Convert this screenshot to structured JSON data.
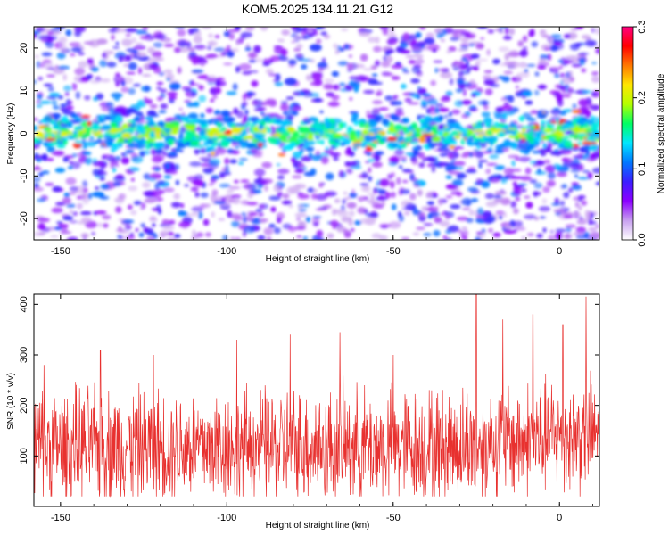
{
  "title": "KOM5.2025.134.11.21.G12",
  "chart_data": [
    {
      "type": "heatmap",
      "title": "KOM5.2025.134.11.21.G12",
      "xlabel": "Height of straight line (km)",
      "ylabel": "Frequency (Hz)",
      "xlim": [
        -158,
        12
      ],
      "ylim": [
        -25,
        25
      ],
      "x_ticks": [
        -150,
        -100,
        -50,
        0
      ],
      "x_tick_labels": [
        "-150",
        "-100",
        "-50",
        "0"
      ],
      "y_ticks": [
        -20,
        -10,
        0,
        10,
        20
      ],
      "y_tick_labels": [
        "-20",
        "-10",
        "0",
        "10",
        "20"
      ],
      "colorbar": {
        "label": "Normalized spectral amplitude",
        "range": [
          0.0,
          0.3
        ],
        "ticks": [
          0.0,
          0.1,
          0.2,
          0.3
        ],
        "tick_labels": [
          "0.0",
          "0.1",
          "0.2",
          "0.3"
        ],
        "colormap": [
          "#ffffff",
          "#c8a0f0",
          "#8c00ff",
          "#3c1eff",
          "#0078ff",
          "#00e6ff",
          "#00ff64",
          "#b4ff00",
          "#ffe600",
          "#ff7800",
          "#ff0000",
          "#ff0080"
        ]
      },
      "band": {
        "center_hz": 0,
        "half_width_hz": 4,
        "peak_amplitude": 0.28
      },
      "grid": false
    },
    {
      "type": "line",
      "xlabel": "Height of straight line (km)",
      "ylabel": "SNR (10 * v/v)",
      "xlim": [
        -158,
        12
      ],
      "ylim": [
        0,
        420
      ],
      "x_ticks": [
        -150,
        -100,
        -50,
        0
      ],
      "x_tick_labels": [
        "-150",
        "-100",
        "-50",
        "0"
      ],
      "y_ticks": [
        100,
        200,
        300,
        400
      ],
      "y_tick_labels": [
        "100",
        "200",
        "300",
        "400"
      ],
      "series": [
        {
          "color": "#e8312f",
          "baseline": 120,
          "typical_range": [
            20,
            260
          ],
          "peaks": [
            {
              "x": -155,
              "y": 280
            },
            {
              "x": -138,
              "y": 310
            },
            {
              "x": -122,
              "y": 300
            },
            {
              "x": -97,
              "y": 330
            },
            {
              "x": -81,
              "y": 340
            },
            {
              "x": -66,
              "y": 345
            },
            {
              "x": -50,
              "y": 300
            },
            {
              "x": -25,
              "y": 420
            },
            {
              "x": -17,
              "y": 370
            },
            {
              "x": -8,
              "y": 380
            },
            {
              "x": 1,
              "y": 360
            },
            {
              "x": 8,
              "y": 415
            }
          ]
        }
      ],
      "grid": false
    }
  ]
}
